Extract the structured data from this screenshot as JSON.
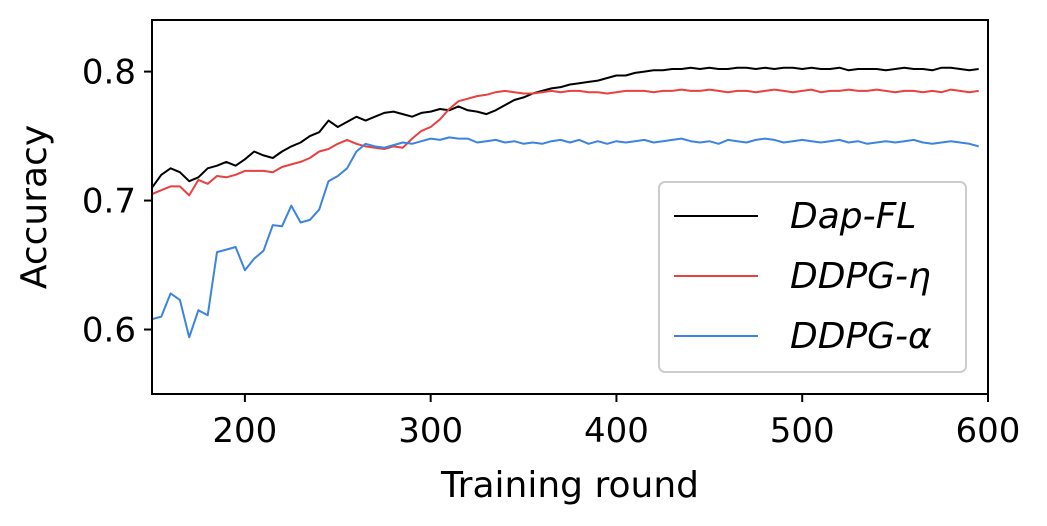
{
  "chart_data": {
    "type": "line",
    "xlabel": "Training round",
    "ylabel": "Accuracy",
    "xlim": [
      150,
      600
    ],
    "ylim": [
      0.55,
      0.84
    ],
    "xticks": [
      200,
      300,
      400,
      500,
      600
    ],
    "xtick_labels": [
      "200",
      "300",
      "400",
      "500",
      "600"
    ],
    "yticks": [
      0.6,
      0.7,
      0.8
    ],
    "ytick_labels": [
      "0.6",
      "0.7",
      "0.8"
    ],
    "grid": false,
    "legend_position": "lower-right",
    "series": [
      {
        "name": "Dap-FL",
        "color": "#000000",
        "points": [
          [
            150,
            0.71
          ],
          [
            155,
            0.72
          ],
          [
            160,
            0.725
          ],
          [
            165,
            0.722
          ],
          [
            170,
            0.715
          ],
          [
            175,
            0.718
          ],
          [
            180,
            0.725
          ],
          [
            185,
            0.727
          ],
          [
            190,
            0.73
          ],
          [
            195,
            0.727
          ],
          [
            200,
            0.732
          ],
          [
            205,
            0.738
          ],
          [
            210,
            0.735
          ],
          [
            215,
            0.733
          ],
          [
            220,
            0.738
          ],
          [
            225,
            0.742
          ],
          [
            230,
            0.745
          ],
          [
            235,
            0.75
          ],
          [
            240,
            0.753
          ],
          [
            245,
            0.762
          ],
          [
            250,
            0.757
          ],
          [
            255,
            0.761
          ],
          [
            260,
            0.765
          ],
          [
            265,
            0.762
          ],
          [
            270,
            0.765
          ],
          [
            275,
            0.768
          ],
          [
            280,
            0.769
          ],
          [
            285,
            0.767
          ],
          [
            290,
            0.765
          ],
          [
            295,
            0.768
          ],
          [
            300,
            0.769
          ],
          [
            305,
            0.771
          ],
          [
            310,
            0.77
          ],
          [
            315,
            0.773
          ],
          [
            320,
            0.77
          ],
          [
            325,
            0.769
          ],
          [
            330,
            0.767
          ],
          [
            335,
            0.77
          ],
          [
            340,
            0.774
          ],
          [
            345,
            0.778
          ],
          [
            350,
            0.78
          ],
          [
            355,
            0.783
          ],
          [
            360,
            0.785
          ],
          [
            365,
            0.787
          ],
          [
            370,
            0.788
          ],
          [
            375,
            0.79
          ],
          [
            380,
            0.791
          ],
          [
            385,
            0.792
          ],
          [
            390,
            0.793
          ],
          [
            395,
            0.795
          ],
          [
            400,
            0.797
          ],
          [
            405,
            0.797
          ],
          [
            410,
            0.799
          ],
          [
            415,
            0.8
          ],
          [
            420,
            0.801
          ],
          [
            425,
            0.801
          ],
          [
            430,
            0.802
          ],
          [
            435,
            0.802
          ],
          [
            440,
            0.803
          ],
          [
            445,
            0.802
          ],
          [
            450,
            0.803
          ],
          [
            455,
            0.802
          ],
          [
            460,
            0.802
          ],
          [
            465,
            0.803
          ],
          [
            470,
            0.803
          ],
          [
            475,
            0.802
          ],
          [
            480,
            0.803
          ],
          [
            485,
            0.802
          ],
          [
            490,
            0.803
          ],
          [
            495,
            0.803
          ],
          [
            500,
            0.802
          ],
          [
            505,
            0.803
          ],
          [
            510,
            0.802
          ],
          [
            515,
            0.802
          ],
          [
            520,
            0.803
          ],
          [
            525,
            0.801
          ],
          [
            530,
            0.802
          ],
          [
            535,
            0.802
          ],
          [
            540,
            0.802
          ],
          [
            545,
            0.801
          ],
          [
            550,
            0.802
          ],
          [
            555,
            0.803
          ],
          [
            560,
            0.802
          ],
          [
            565,
            0.802
          ],
          [
            570,
            0.801
          ],
          [
            575,
            0.803
          ],
          [
            580,
            0.803
          ],
          [
            585,
            0.802
          ],
          [
            590,
            0.801
          ],
          [
            595,
            0.802
          ]
        ]
      },
      {
        "name": "DDPG-η",
        "color": "#e8413f",
        "points": [
          [
            150,
            0.705
          ],
          [
            155,
            0.708
          ],
          [
            160,
            0.711
          ],
          [
            165,
            0.711
          ],
          [
            170,
            0.704
          ],
          [
            175,
            0.716
          ],
          [
            180,
            0.713
          ],
          [
            185,
            0.719
          ],
          [
            190,
            0.718
          ],
          [
            195,
            0.72
          ],
          [
            200,
            0.723
          ],
          [
            205,
            0.723
          ],
          [
            210,
            0.723
          ],
          [
            215,
            0.722
          ],
          [
            220,
            0.726
          ],
          [
            225,
            0.728
          ],
          [
            230,
            0.73
          ],
          [
            235,
            0.733
          ],
          [
            240,
            0.738
          ],
          [
            245,
            0.74
          ],
          [
            250,
            0.744
          ],
          [
            255,
            0.747
          ],
          [
            260,
            0.744
          ],
          [
            265,
            0.742
          ],
          [
            270,
            0.741
          ],
          [
            275,
            0.74
          ],
          [
            280,
            0.742
          ],
          [
            285,
            0.741
          ],
          [
            290,
            0.748
          ],
          [
            295,
            0.754
          ],
          [
            300,
            0.757
          ],
          [
            305,
            0.763
          ],
          [
            310,
            0.771
          ],
          [
            315,
            0.777
          ],
          [
            320,
            0.779
          ],
          [
            325,
            0.781
          ],
          [
            330,
            0.782
          ],
          [
            335,
            0.784
          ],
          [
            340,
            0.785
          ],
          [
            345,
            0.784
          ],
          [
            350,
            0.783
          ],
          [
            355,
            0.783
          ],
          [
            360,
            0.784
          ],
          [
            365,
            0.785
          ],
          [
            370,
            0.784
          ],
          [
            375,
            0.785
          ],
          [
            380,
            0.785
          ],
          [
            385,
            0.784
          ],
          [
            390,
            0.784
          ],
          [
            395,
            0.783
          ],
          [
            400,
            0.784
          ],
          [
            405,
            0.785
          ],
          [
            410,
            0.785
          ],
          [
            415,
            0.785
          ],
          [
            420,
            0.784
          ],
          [
            425,
            0.785
          ],
          [
            430,
            0.785
          ],
          [
            435,
            0.786
          ],
          [
            440,
            0.785
          ],
          [
            445,
            0.785
          ],
          [
            450,
            0.786
          ],
          [
            455,
            0.785
          ],
          [
            460,
            0.784
          ],
          [
            465,
            0.785
          ],
          [
            470,
            0.785
          ],
          [
            475,
            0.784
          ],
          [
            480,
            0.785
          ],
          [
            485,
            0.786
          ],
          [
            490,
            0.785
          ],
          [
            495,
            0.784
          ],
          [
            500,
            0.785
          ],
          [
            505,
            0.786
          ],
          [
            510,
            0.784
          ],
          [
            515,
            0.785
          ],
          [
            520,
            0.785
          ],
          [
            525,
            0.786
          ],
          [
            530,
            0.785
          ],
          [
            535,
            0.785
          ],
          [
            540,
            0.786
          ],
          [
            545,
            0.785
          ],
          [
            550,
            0.784
          ],
          [
            555,
            0.785
          ],
          [
            560,
            0.785
          ],
          [
            565,
            0.784
          ],
          [
            570,
            0.785
          ],
          [
            575,
            0.784
          ],
          [
            580,
            0.786
          ],
          [
            585,
            0.785
          ],
          [
            590,
            0.784
          ],
          [
            595,
            0.785
          ]
        ]
      },
      {
        "name": "DDPG-α",
        "color": "#3c84e0",
        "points": [
          [
            150,
            0.608
          ],
          [
            155,
            0.61
          ],
          [
            160,
            0.628
          ],
          [
            165,
            0.623
          ],
          [
            170,
            0.594
          ],
          [
            175,
            0.615
          ],
          [
            180,
            0.611
          ],
          [
            185,
            0.66
          ],
          [
            190,
            0.662
          ],
          [
            195,
            0.664
          ],
          [
            200,
            0.646
          ],
          [
            205,
            0.655
          ],
          [
            210,
            0.661
          ],
          [
            215,
            0.681
          ],
          [
            220,
            0.68
          ],
          [
            225,
            0.696
          ],
          [
            230,
            0.683
          ],
          [
            235,
            0.685
          ],
          [
            240,
            0.693
          ],
          [
            245,
            0.715
          ],
          [
            250,
            0.719
          ],
          [
            255,
            0.725
          ],
          [
            260,
            0.738
          ],
          [
            265,
            0.744
          ],
          [
            270,
            0.742
          ],
          [
            275,
            0.741
          ],
          [
            280,
            0.743
          ],
          [
            285,
            0.745
          ],
          [
            290,
            0.744
          ],
          [
            295,
            0.746
          ],
          [
            300,
            0.748
          ],
          [
            305,
            0.747
          ],
          [
            310,
            0.749
          ],
          [
            315,
            0.748
          ],
          [
            320,
            0.748
          ],
          [
            325,
            0.745
          ],
          [
            330,
            0.746
          ],
          [
            335,
            0.747
          ],
          [
            340,
            0.745
          ],
          [
            345,
            0.746
          ],
          [
            350,
            0.744
          ],
          [
            355,
            0.745
          ],
          [
            360,
            0.744
          ],
          [
            365,
            0.746
          ],
          [
            370,
            0.747
          ],
          [
            375,
            0.745
          ],
          [
            380,
            0.747
          ],
          [
            385,
            0.744
          ],
          [
            390,
            0.746
          ],
          [
            395,
            0.744
          ],
          [
            400,
            0.746
          ],
          [
            405,
            0.745
          ],
          [
            410,
            0.746
          ],
          [
            415,
            0.747
          ],
          [
            420,
            0.745
          ],
          [
            425,
            0.746
          ],
          [
            430,
            0.747
          ],
          [
            435,
            0.748
          ],
          [
            440,
            0.746
          ],
          [
            445,
            0.745
          ],
          [
            450,
            0.746
          ],
          [
            455,
            0.744
          ],
          [
            460,
            0.747
          ],
          [
            465,
            0.746
          ],
          [
            470,
            0.745
          ],
          [
            475,
            0.747
          ],
          [
            480,
            0.748
          ],
          [
            485,
            0.747
          ],
          [
            490,
            0.745
          ],
          [
            495,
            0.746
          ],
          [
            500,
            0.747
          ],
          [
            505,
            0.746
          ],
          [
            510,
            0.745
          ],
          [
            515,
            0.746
          ],
          [
            520,
            0.747
          ],
          [
            525,
            0.745
          ],
          [
            530,
            0.746
          ],
          [
            535,
            0.744
          ],
          [
            540,
            0.745
          ],
          [
            545,
            0.746
          ],
          [
            550,
            0.745
          ],
          [
            555,
            0.746
          ],
          [
            560,
            0.747
          ],
          [
            565,
            0.745
          ],
          [
            570,
            0.744
          ],
          [
            575,
            0.745
          ],
          [
            580,
            0.746
          ],
          [
            585,
            0.745
          ],
          [
            590,
            0.744
          ],
          [
            595,
            0.742
          ]
        ]
      }
    ]
  }
}
